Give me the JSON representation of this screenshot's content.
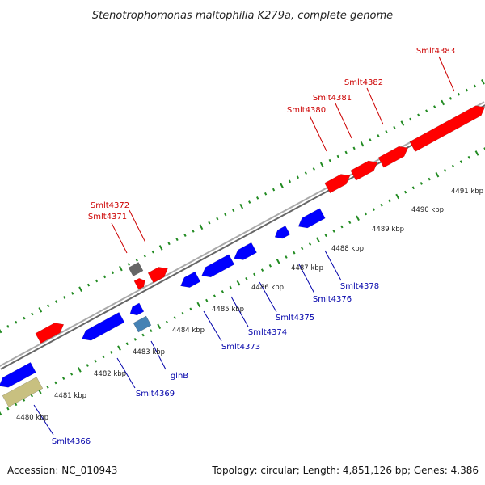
{
  "title": "Stenotrophomonas maltophilia K279a, complete genome",
  "footer": {
    "accession": "Accession: NC_010943",
    "summary": "Topology: circular; Length: 4,851,126 bp; Genes: 4,386"
  },
  "colors": {
    "forward_strand": "#ff0000",
    "reverse_strand": "#0000ff",
    "pseudo_gene": "#666666",
    "glnB_gene": "#4682b4",
    "other_feature": "#c8c080",
    "forward_label": "#cc0000",
    "reverse_label": "#0000aa",
    "tick_marks": "#228b22",
    "backbone": "#999999"
  },
  "scale_labels": [
    "4480 kbp",
    "4481 kbp",
    "4482 kbp",
    "4483 kbp",
    "4484 kbp",
    "4485 kbp",
    "4486 kbp",
    "4487 kbp",
    "4488 kbp",
    "4489 kbp",
    "4490 kbp",
    "4491 kbp"
  ],
  "genes_forward": [
    "Smlt4371",
    "Smlt4372",
    "Smlt4380",
    "Smlt4381",
    "Smlt4382",
    "Smlt4383"
  ],
  "genes_reverse": [
    "Smlt4366",
    "Smlt4369",
    "glnB",
    "Smlt4373",
    "Smlt4374",
    "Smlt4375",
    "Smlt4376",
    "Smlt4378"
  ]
}
